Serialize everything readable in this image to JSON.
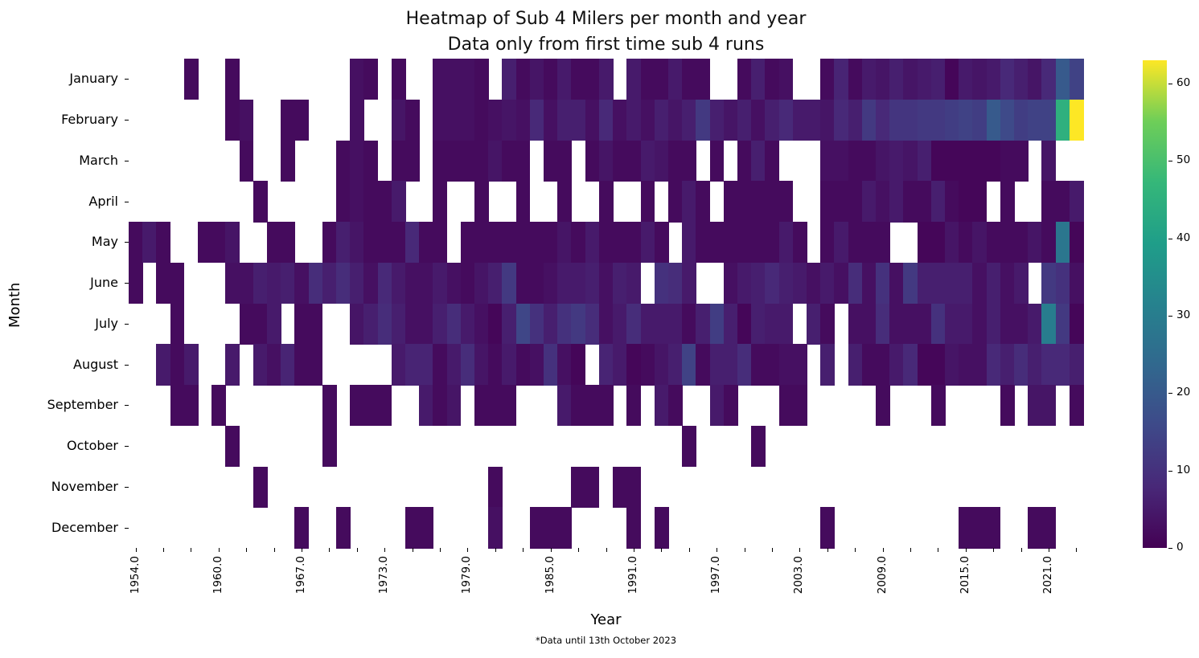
{
  "title": {
    "line1": "Heatmap of Sub 4 Milers per month and year",
    "line2": "Data only from first time sub 4 runs"
  },
  "footnote": "*Data until 13th October 2023",
  "colorbar": {
    "ticks": [
      0,
      10,
      20,
      30,
      40,
      50,
      60
    ],
    "vmin": 0,
    "vmax": 63,
    "colormap": "viridis"
  },
  "chart_data": {
    "type": "heatmap",
    "title": "Heatmap of Sub 4 Milers per month and year — Data only from first time sub 4 runs",
    "xlabel": "Year",
    "ylabel": "Month",
    "colormap": "viridis",
    "vmin": 0,
    "vmax": 63,
    "note": "white cells = no data",
    "x": [
      1954,
      1955,
      1956,
      1957,
      1958,
      1959,
      1960,
      1962,
      1963,
      1964,
      1965,
      1966,
      1967,
      1968,
      1969,
      1970,
      1971,
      1972,
      1973,
      1974,
      1975,
      1976,
      1977,
      1978,
      1979,
      1980,
      1981,
      1982,
      1983,
      1984,
      1985,
      1986,
      1987,
      1988,
      1989,
      1990,
      1991,
      1992,
      1993,
      1994,
      1995,
      1996,
      1997,
      1998,
      1999,
      2000,
      2001,
      2002,
      2003,
      2004,
      2005,
      2006,
      2007,
      2008,
      2009,
      2010,
      2011,
      2012,
      2013,
      2014,
      2015,
      2016,
      2017,
      2018,
      2019,
      2020,
      2021,
      2022,
      2023
    ],
    "x_tick_labels": [
      "1954.0",
      "1960.0",
      "1967.0",
      "1973.0",
      "1979.0",
      "1985.0",
      "1991.0",
      "1997.0",
      "2003.0",
      "2009.0",
      "2015.0",
      "2021.0"
    ],
    "x_tick_label_positions": [
      0,
      6,
      12,
      18,
      24,
      30,
      36,
      42,
      48,
      54,
      60,
      66
    ],
    "x_minor_tick_step": 2,
    "y": [
      "January",
      "February",
      "March",
      "April",
      "May",
      "June",
      "July",
      "August",
      "September",
      "October",
      "November",
      "December"
    ],
    "values": [
      [
        null,
        null,
        null,
        null,
        2,
        null,
        null,
        2,
        null,
        null,
        null,
        null,
        null,
        null,
        null,
        null,
        3,
        2,
        null,
        2,
        null,
        null,
        3,
        3,
        3,
        2,
        null,
        6,
        2,
        4,
        2,
        5,
        2,
        2,
        5,
        null,
        5,
        2,
        2,
        5,
        2,
        2,
        null,
        null,
        2,
        6,
        2,
        3,
        null,
        null,
        2,
        7,
        2,
        5,
        4,
        6,
        4,
        5,
        6,
        1,
        5,
        4,
        5,
        8,
        6,
        4,
        8,
        20,
        14
      ],
      [
        null,
        null,
        null,
        null,
        null,
        null,
        null,
        2,
        3,
        null,
        null,
        2,
        2,
        null,
        null,
        null,
        3,
        null,
        null,
        4,
        2,
        null,
        3,
        3,
        3,
        2,
        3,
        4,
        3,
        8,
        3,
        6,
        6,
        3,
        8,
        3,
        5,
        3,
        6,
        4,
        6,
        12,
        6,
        4,
        6,
        3,
        6,
        8,
        5,
        5,
        4,
        8,
        6,
        12,
        8,
        11,
        11,
        12,
        12,
        13,
        14,
        13,
        20,
        16,
        13,
        14,
        14,
        45,
        63
      ],
      [
        null,
        null,
        null,
        null,
        null,
        null,
        null,
        null,
        2,
        null,
        null,
        2,
        null,
        null,
        null,
        2,
        3,
        2,
        null,
        2,
        2,
        null,
        2,
        2,
        2,
        2,
        4,
        2,
        2,
        null,
        2,
        2,
        null,
        2,
        4,
        2,
        2,
        5,
        4,
        2,
        2,
        null,
        2,
        null,
        2,
        6,
        2,
        null,
        null,
        null,
        3,
        3,
        2,
        2,
        4,
        5,
        4,
        6,
        1,
        1,
        1,
        1,
        1,
        2,
        2,
        null,
        4,
        null,
        null
      ],
      [
        null,
        null,
        null,
        null,
        null,
        null,
        null,
        null,
        null,
        2,
        null,
        null,
        null,
        null,
        null,
        2,
        3,
        2,
        2,
        5,
        null,
        null,
        2,
        null,
        null,
        2,
        null,
        null,
        2,
        null,
        null,
        2,
        null,
        null,
        2,
        null,
        null,
        2,
        null,
        2,
        5,
        2,
        null,
        2,
        2,
        2,
        2,
        2,
        null,
        null,
        2,
        2,
        2,
        5,
        3,
        5,
        2,
        2,
        6,
        2,
        1,
        1,
        null,
        2,
        null,
        null,
        2,
        2,
        5
      ],
      [
        2,
        5,
        2,
        null,
        null,
        2,
        2,
        4,
        null,
        null,
        2,
        2,
        null,
        null,
        2,
        6,
        4,
        2,
        2,
        2,
        8,
        2,
        2,
        null,
        2,
        2,
        2,
        2,
        2,
        2,
        2,
        4,
        2,
        5,
        2,
        2,
        2,
        5,
        2,
        null,
        5,
        2,
        2,
        2,
        2,
        2,
        2,
        5,
        2,
        null,
        2,
        5,
        2,
        2,
        2,
        null,
        null,
        1,
        1,
        4,
        2,
        4,
        2,
        2,
        2,
        4,
        2,
        28,
        1
      ],
      [
        2,
        null,
        2,
        2,
        null,
        null,
        null,
        3,
        3,
        6,
        5,
        6,
        3,
        9,
        6,
        9,
        6,
        3,
        8,
        5,
        3,
        3,
        5,
        3,
        2,
        4,
        6,
        12,
        2,
        2,
        3,
        5,
        5,
        6,
        3,
        6,
        5,
        null,
        10,
        9,
        5,
        null,
        null,
        3,
        5,
        6,
        8,
        6,
        5,
        3,
        5,
        3,
        9,
        3,
        10,
        3,
        12,
        6,
        6,
        6,
        6,
        3,
        6,
        3,
        5,
        null,
        12,
        10,
        3
      ],
      [
        null,
        null,
        null,
        2,
        null,
        null,
        null,
        null,
        2,
        2,
        5,
        null,
        2,
        2,
        null,
        null,
        4,
        6,
        9,
        6,
        3,
        3,
        6,
        9,
        5,
        3,
        1,
        6,
        15,
        10,
        6,
        10,
        12,
        9,
        3,
        5,
        9,
        5,
        5,
        5,
        2,
        6,
        13,
        6,
        1,
        6,
        5,
        5,
        null,
        6,
        2,
        null,
        3,
        3,
        9,
        3,
        3,
        3,
        10,
        5,
        5,
        3,
        6,
        3,
        3,
        5,
        30,
        12,
        1
      ],
      [
        null,
        null,
        5,
        2,
        5,
        null,
        null,
        5,
        null,
        5,
        3,
        7,
        2,
        2,
        null,
        null,
        null,
        null,
        null,
        5,
        7,
        7,
        2,
        5,
        9,
        4,
        2,
        5,
        2,
        3,
        10,
        3,
        1,
        null,
        7,
        5,
        1,
        2,
        4,
        6,
        14,
        2,
        6,
        6,
        9,
        2,
        2,
        3,
        3,
        null,
        6,
        null,
        6,
        2,
        2,
        5,
        8,
        1,
        1,
        4,
        3,
        3,
        8,
        6,
        9,
        6,
        8,
        8,
        6
      ],
      [
        null,
        null,
        null,
        2,
        2,
        null,
        2,
        null,
        null,
        null,
        null,
        null,
        null,
        null,
        2,
        null,
        2,
        2,
        2,
        null,
        null,
        5,
        2,
        4,
        null,
        2,
        2,
        2,
        null,
        null,
        null,
        5,
        2,
        2,
        2,
        null,
        2,
        null,
        5,
        2,
        null,
        null,
        5,
        2,
        null,
        null,
        null,
        2,
        2,
        null,
        null,
        null,
        null,
        null,
        2,
        null,
        null,
        null,
        2,
        null,
        null,
        null,
        null,
        2,
        null,
        4,
        4,
        null,
        2
      ],
      [
        null,
        null,
        null,
        null,
        null,
        null,
        null,
        2,
        null,
        null,
        null,
        null,
        null,
        null,
        2,
        null,
        null,
        null,
        null,
        null,
        null,
        null,
        null,
        null,
        null,
        null,
        null,
        null,
        null,
        null,
        null,
        null,
        null,
        null,
        null,
        null,
        null,
        null,
        null,
        null,
        2,
        null,
        null,
        null,
        null,
        2,
        null,
        null,
        null,
        null,
        null,
        null,
        null,
        null,
        null,
        null,
        null,
        null,
        null,
        null,
        null,
        null,
        null,
        null,
        null,
        null,
        null,
        null,
        null
      ],
      [
        null,
        null,
        null,
        null,
        null,
        null,
        null,
        null,
        null,
        2,
        null,
        null,
        null,
        null,
        null,
        null,
        null,
        null,
        null,
        null,
        null,
        null,
        null,
        null,
        null,
        null,
        2,
        null,
        null,
        null,
        null,
        null,
        2,
        2,
        null,
        2,
        2,
        null,
        null,
        null,
        null,
        null,
        null,
        null,
        null,
        null,
        null,
        null,
        null,
        null,
        null,
        null,
        null,
        null,
        null,
        null,
        null,
        null,
        null,
        null,
        null,
        null,
        null,
        null,
        null,
        null,
        null,
        null,
        null
      ],
      [
        null,
        null,
        null,
        null,
        null,
        null,
        null,
        null,
        null,
        null,
        null,
        null,
        2,
        null,
        null,
        2,
        null,
        null,
        null,
        null,
        2,
        2,
        null,
        null,
        null,
        null,
        3,
        null,
        null,
        2,
        2,
        2,
        null,
        null,
        null,
        null,
        2,
        null,
        2,
        null,
        null,
        null,
        null,
        null,
        null,
        null,
        null,
        null,
        null,
        null,
        2,
        null,
        null,
        null,
        null,
        null,
        null,
        null,
        null,
        null,
        2,
        2,
        2,
        null,
        null,
        2,
        2,
        null,
        null
      ]
    ]
  }
}
